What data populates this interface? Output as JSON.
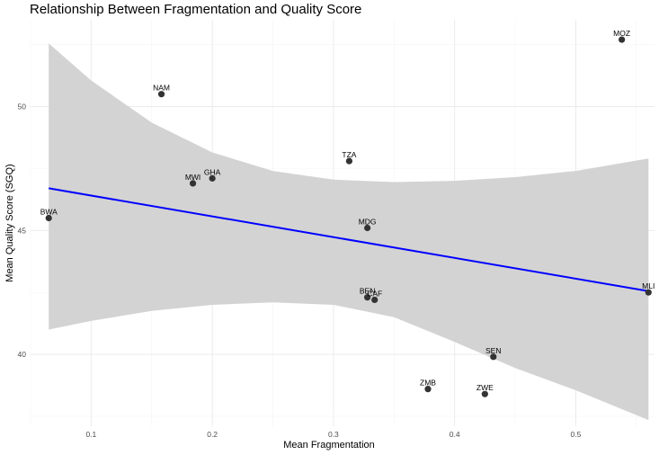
{
  "chart_data": {
    "type": "scatter",
    "title": "Relationship Between Fragmentation and Quality Score",
    "xlabel": "Mean Fragmentation",
    "ylabel": "Mean Quality Score (SGQ)",
    "xlim": [
      0.05,
      0.565
    ],
    "ylim": [
      37.1,
      53.5
    ],
    "x_ticks": [
      0.1,
      0.2,
      0.3,
      0.4,
      0.5
    ],
    "x_tick_labels": [
      "0.1",
      "0.2",
      "0.3",
      "0.4",
      "0.5"
    ],
    "y_ticks": [
      40,
      45,
      50
    ],
    "y_tick_labels": [
      "40",
      "45",
      "50"
    ],
    "grid": true,
    "points": [
      {
        "label": "MOZ",
        "x": 0.538,
        "y": 52.7
      },
      {
        "label": "NAM",
        "x": 0.158,
        "y": 50.5
      },
      {
        "label": "TZA",
        "x": 0.313,
        "y": 47.8
      },
      {
        "label": "GHA",
        "x": 0.2,
        "y": 47.1
      },
      {
        "label": "MWI",
        "x": 0.184,
        "y": 46.9
      },
      {
        "label": "BWA",
        "x": 0.065,
        "y": 45.5
      },
      {
        "label": "MDG",
        "x": 0.328,
        "y": 45.1
      },
      {
        "label": "BEN",
        "x": 0.328,
        "y": 42.3
      },
      {
        "label": "CAF",
        "x": 0.334,
        "y": 42.2
      },
      {
        "label": "MLI",
        "x": 0.56,
        "y": 42.5
      },
      {
        "label": "SEN",
        "x": 0.432,
        "y": 39.9
      },
      {
        "label": "ZMB",
        "x": 0.378,
        "y": 38.6
      },
      {
        "label": "ZWE",
        "x": 0.425,
        "y": 38.4
      }
    ],
    "fit_line": {
      "x": [
        0.065,
        0.56
      ],
      "y": [
        46.7,
        42.55
      ]
    },
    "confidence_band": {
      "x": [
        0.065,
        0.1,
        0.15,
        0.2,
        0.25,
        0.3,
        0.35,
        0.4,
        0.45,
        0.5,
        0.56
      ],
      "upper": [
        52.55,
        51.05,
        49.35,
        48.15,
        47.4,
        47.05,
        46.95,
        47.0,
        47.15,
        47.4,
        47.9
      ],
      "lower": [
        41.0,
        41.35,
        41.75,
        42.0,
        42.1,
        42.0,
        41.5,
        40.5,
        39.45,
        38.55,
        37.35
      ]
    },
    "colors": {
      "points": "#333333",
      "fit_line": "#0000ff",
      "band": "#d3d3d3"
    }
  }
}
